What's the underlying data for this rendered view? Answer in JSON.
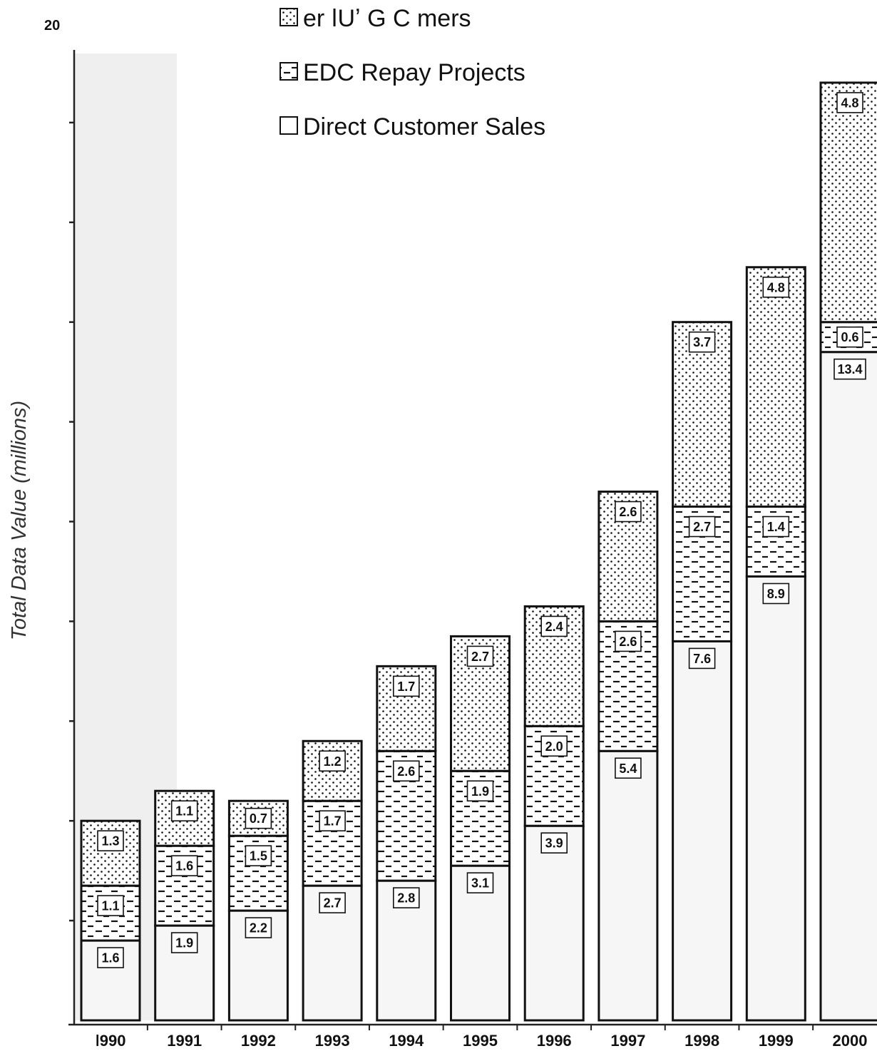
{
  "chart_data": {
    "type": "bar",
    "stacked": true,
    "ylabel": "Total Data Value (millions)",
    "y_top_tick_label": "20",
    "ylim": [
      0,
      20
    ],
    "y_tick_step": 2,
    "grid": false,
    "legend_placement": "top-center",
    "categories": [
      "1990",
      "1991",
      "1992",
      "1993",
      "1994",
      "1995",
      "1996",
      "1997",
      "1998",
      "1999",
      "2000"
    ],
    "category_labels": [
      "ǀ990",
      "1991",
      "1992",
      "1993",
      "1994",
      "1995",
      "1996",
      "1997",
      "1998",
      "1999",
      "2000"
    ],
    "series": [
      {
        "name": "Direct Customer Sales",
        "pattern": "plain",
        "values": [
          1.6,
          1.9,
          2.2,
          2.7,
          2.8,
          3.1,
          3.9,
          5.4,
          7.6,
          8.9,
          13.4
        ]
      },
      {
        "name": "EDC Repay Projects",
        "pattern": "dashes",
        "values": [
          1.1,
          1.6,
          1.5,
          1.7,
          2.6,
          1.9,
          2.0,
          2.6,
          2.7,
          1.4,
          0.6
        ]
      },
      {
        "name": "er  ǀUʼ G  C   mers",
        "pattern": "dots",
        "values": [
          1.3,
          1.1,
          0.7,
          1.2,
          1.7,
          2.7,
          2.4,
          2.6,
          3.7,
          4.8,
          4.8
        ]
      }
    ],
    "legend_order": [
      2,
      1,
      0
    ],
    "colors": {
      "background": "#ffffff",
      "bar_fill": "#f6f6f6",
      "outline": "#111111",
      "pattern": "#111111",
      "label_box": "#ffffff"
    }
  }
}
